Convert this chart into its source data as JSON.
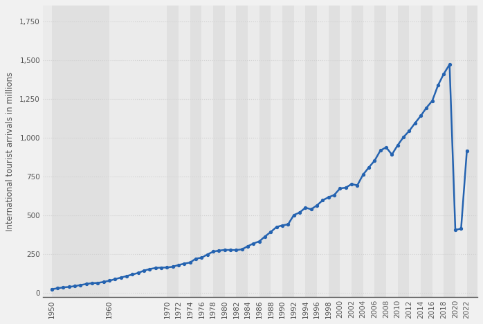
{
  "years": [
    1950,
    1951,
    1952,
    1953,
    1954,
    1955,
    1956,
    1957,
    1958,
    1959,
    1960,
    1961,
    1962,
    1963,
    1964,
    1965,
    1966,
    1967,
    1968,
    1969,
    1970,
    1971,
    1972,
    1973,
    1974,
    1975,
    1976,
    1977,
    1978,
    1979,
    1980,
    1981,
    1982,
    1983,
    1984,
    1985,
    1986,
    1987,
    1988,
    1989,
    1990,
    1991,
    1992,
    1993,
    1994,
    1995,
    1996,
    1997,
    1998,
    1999,
    2000,
    2001,
    2002,
    2003,
    2004,
    2005,
    2006,
    2007,
    2008,
    2009,
    2010,
    2011,
    2012,
    2013,
    2014,
    2015,
    2016,
    2017,
    2018,
    2019,
    2020,
    2021,
    2022
  ],
  "values": [
    25,
    31,
    37,
    40,
    45,
    52,
    59,
    64,
    66,
    72,
    80,
    90,
    100,
    110,
    120,
    130,
    145,
    155,
    162,
    164,
    165,
    170,
    181,
    190,
    197,
    222,
    228,
    249,
    267,
    274,
    278,
    278,
    277,
    282,
    302,
    320,
    333,
    365,
    394,
    426,
    436,
    443,
    503,
    519,
    550,
    540,
    565,
    598,
    617,
    632,
    674,
    679,
    702,
    694,
    763,
    809,
    853,
    918,
    939,
    892,
    952,
    1004,
    1044,
    1094,
    1141,
    1194,
    1238,
    1338,
    1412,
    1472,
    407,
    415,
    917
  ],
  "line_color": "#2563b0",
  "line_width": 1.8,
  "marker": "o",
  "marker_size": 2.8,
  "ylabel": "International tourist arrivals in millions",
  "ylabel_fontsize": 8.5,
  "yticks": [
    0,
    250,
    500,
    750,
    1000,
    1250,
    1500,
    1750
  ],
  "ytick_labels": [
    "0",
    "250",
    "500",
    "750",
    "1,000",
    "1,250",
    "1,500",
    "1,750"
  ],
  "ylim": [
    -25,
    1850
  ],
  "xtick_labels": [
    "1950",
    "1960",
    "1970",
    "1972",
    "1974",
    "1976",
    "1978",
    "1980",
    "1982",
    "1984",
    "1986",
    "1988",
    "1990",
    "1992",
    "1994",
    "1996",
    "1998",
    "2000",
    "2002",
    "2004",
    "2006",
    "2008",
    "2010",
    "2012",
    "2014",
    "2016",
    "2018",
    "2020",
    "2022"
  ],
  "xtick_years": [
    1950,
    1960,
    1970,
    1972,
    1974,
    1976,
    1978,
    1980,
    1982,
    1984,
    1986,
    1988,
    1990,
    1992,
    1994,
    1996,
    1998,
    2000,
    2002,
    2004,
    2006,
    2008,
    2010,
    2012,
    2014,
    2016,
    2018,
    2020,
    2022
  ],
  "grid_color": "#d0d0d0",
  "bg_color": "#f1f1f1",
  "plot_bg_color": "#f1f1f1",
  "band_light": "#ebebeb",
  "band_dark": "#e0e0e0",
  "tick_fontsize": 7.5,
  "xlim_left": 1948.5,
  "xlim_right": 2023.8
}
